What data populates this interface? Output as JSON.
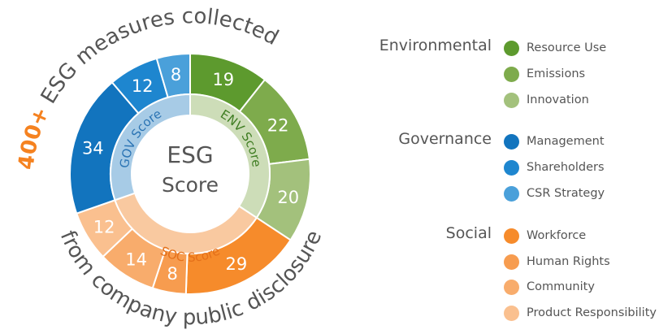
{
  "headline": {
    "count": "400+",
    "text": "ESG measures collected"
  },
  "footer": "from company public disclosure",
  "center": {
    "line1": "ESG",
    "line2": "Score"
  },
  "pillars": {
    "gov": "GOV Score",
    "env": "ENV Score",
    "soc": "SOC Score"
  },
  "colors": {
    "orange_accent": "#f58220",
    "text_gray": "#555555"
  },
  "chart_data": {
    "type": "sunburst",
    "title": "",
    "inner": [
      {
        "name": "ENV Score",
        "value": 61,
        "color": "#cdddb8"
      },
      {
        "name": "SOC Score",
        "value": 63,
        "color": "#f9c9a0"
      },
      {
        "name": "GOV Score",
        "value": 54,
        "color": "#a7cbe6"
      }
    ],
    "outer": [
      {
        "pillar": "ENV",
        "category": "Resource Use",
        "value": 19,
        "color": "#5d9a2e"
      },
      {
        "pillar": "ENV",
        "category": "Emissions",
        "value": 22,
        "color": "#7eab4c"
      },
      {
        "pillar": "ENV",
        "category": "Innovation",
        "value": 20,
        "color": "#a3c17c"
      },
      {
        "pillar": "SOC",
        "category": "Workforce",
        "value": 29,
        "color": "#f68b2b"
      },
      {
        "pillar": "SOC",
        "category": "Human Rights",
        "value": 8,
        "color": "#f79c4f"
      },
      {
        "pillar": "SOC",
        "category": "Community",
        "value": 14,
        "color": "#f8ac6c"
      },
      {
        "pillar": "SOC",
        "category": "Product Responsibility",
        "value": 12,
        "color": "#fac08f"
      },
      {
        "pillar": "GOV",
        "category": "Management",
        "value": 34,
        "color": "#1274be"
      },
      {
        "pillar": "GOV",
        "category": "Shareholders",
        "value": 12,
        "color": "#1e86cf"
      },
      {
        "pillar": "GOV",
        "category": "CSR Strategy",
        "value": 8,
        "color": "#4aa0da"
      }
    ]
  },
  "legend": {
    "groups": [
      {
        "title": "Environmental",
        "items": [
          {
            "label": "Resource Use",
            "color": "#5d9a2e"
          },
          {
            "label": "Emissions",
            "color": "#7eab4c"
          },
          {
            "label": "Innovation",
            "color": "#a3c17c"
          }
        ]
      },
      {
        "title": "Governance",
        "items": [
          {
            "label": "Management",
            "color": "#1274be"
          },
          {
            "label": "Shareholders",
            "color": "#1e86cf"
          },
          {
            "label": "CSR Strategy",
            "color": "#4aa0da"
          }
        ]
      },
      {
        "title": "Social",
        "items": [
          {
            "label": "Workforce",
            "color": "#f68b2b"
          },
          {
            "label": "Human Rights",
            "color": "#f79c4f"
          },
          {
            "label": "Community",
            "color": "#f8ac6c"
          },
          {
            "label": "Product Responsibility",
            "color": "#fac08f"
          }
        ]
      }
    ]
  }
}
